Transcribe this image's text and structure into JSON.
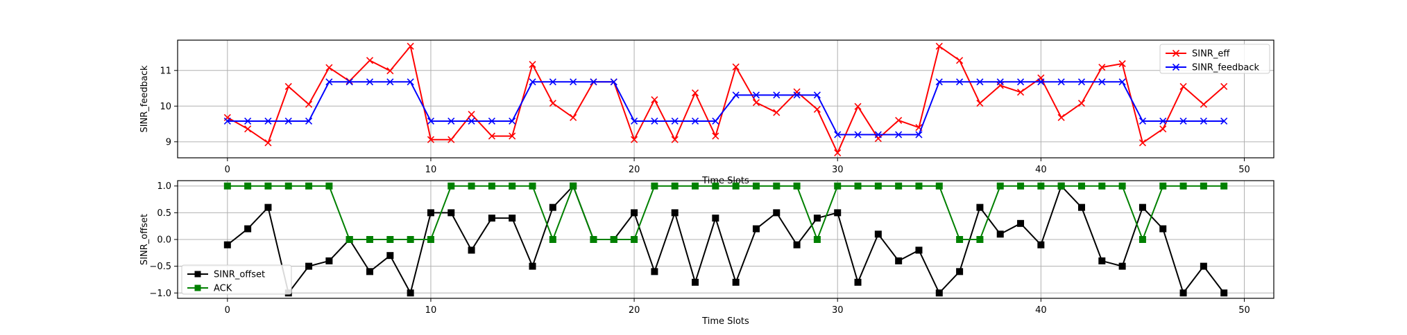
{
  "chart_data": [
    {
      "type": "line",
      "title": "",
      "xlabel": "Time Slots",
      "ylabel": "SINR_feedback",
      "xlim": [
        -2.45,
        51.45
      ],
      "ylim": [
        8.55,
        11.85
      ],
      "xticks": [
        0,
        10,
        20,
        30,
        40,
        50
      ],
      "yticks": [
        9,
        10,
        11
      ],
      "grid": true,
      "legend_position": "upper right",
      "x": [
        0,
        1,
        2,
        3,
        4,
        5,
        6,
        7,
        8,
        9,
        10,
        11,
        12,
        13,
        14,
        15,
        16,
        17,
        18,
        19,
        20,
        21,
        22,
        23,
        24,
        25,
        26,
        27,
        28,
        29,
        30,
        31,
        32,
        33,
        34,
        35,
        36,
        37,
        38,
        39,
        40,
        41,
        42,
        43,
        44,
        45,
        46,
        47,
        48,
        49
      ],
      "series": [
        {
          "name": "SINR_eff",
          "color": "#ff0000",
          "marker": "x",
          "values": [
            9.68,
            9.36,
            8.97,
            10.55,
            10.05,
            11.08,
            10.7,
            11.28,
            10.99,
            11.68,
            9.06,
            9.06,
            9.77,
            9.16,
            9.16,
            11.17,
            10.08,
            9.68,
            10.68,
            10.68,
            9.06,
            10.18,
            9.06,
            10.37,
            9.16,
            11.1,
            10.1,
            9.82,
            10.4,
            9.91,
            8.69,
            9.99,
            9.09,
            9.6,
            9.4,
            11.68,
            11.28,
            10.08,
            10.58,
            10.39,
            10.79,
            9.68,
            10.08,
            11.09,
            11.19,
            8.97,
            9.36,
            10.55,
            10.05,
            10.55
          ]
        },
        {
          "name": "SINR_feedback",
          "color": "#0000ff",
          "marker": "x",
          "values": [
            9.58,
            9.58,
            9.58,
            9.58,
            9.58,
            10.68,
            10.68,
            10.68,
            10.68,
            10.68,
            9.58,
            9.58,
            9.58,
            9.58,
            9.58,
            10.68,
            10.68,
            10.68,
            10.68,
            10.68,
            9.58,
            9.58,
            9.58,
            9.58,
            9.58,
            10.31,
            10.31,
            10.31,
            10.31,
            10.31,
            9.2,
            9.2,
            9.2,
            9.2,
            9.2,
            10.68,
            10.68,
            10.68,
            10.68,
            10.68,
            10.68,
            10.68,
            10.68,
            10.68,
            10.68,
            9.58,
            9.58,
            9.58,
            9.58,
            9.58
          ]
        }
      ]
    },
    {
      "type": "line",
      "title": "",
      "xlabel": "Time Slots",
      "ylabel": "SINR_offset",
      "xlim": [
        -2.45,
        51.45
      ],
      "ylim": [
        -1.1,
        1.1
      ],
      "xticks": [
        0,
        10,
        20,
        30,
        40,
        50
      ],
      "yticks": [
        -1.0,
        -0.5,
        0.0,
        0.5,
        1.0
      ],
      "ytick_labels": [
        "−1.0",
        "−0.5",
        "0.0",
        "0.5",
        "1.0"
      ],
      "grid": true,
      "legend_position": "lower left",
      "x": [
        0,
        1,
        2,
        3,
        4,
        5,
        6,
        7,
        8,
        9,
        10,
        11,
        12,
        13,
        14,
        15,
        16,
        17,
        18,
        19,
        20,
        21,
        22,
        23,
        24,
        25,
        26,
        27,
        28,
        29,
        30,
        31,
        32,
        33,
        34,
        35,
        36,
        37,
        38,
        39,
        40,
        41,
        42,
        43,
        44,
        45,
        46,
        47,
        48,
        49
      ],
      "series": [
        {
          "name": "SINR_offset",
          "color": "#000000",
          "marker": "s",
          "values": [
            -0.1,
            0.2,
            0.6,
            -1.0,
            -0.5,
            -0.4,
            0.0,
            -0.6,
            -0.3,
            -1.0,
            0.5,
            0.5,
            -0.2,
            0.4,
            0.4,
            -0.5,
            0.6,
            1.0,
            0.0,
            0.0,
            0.5,
            -0.6,
            0.5,
            -0.8,
            0.4,
            -0.8,
            0.2,
            0.5,
            -0.1,
            0.4,
            0.5,
            -0.8,
            0.1,
            -0.4,
            -0.2,
            -1.0,
            -0.6,
            0.6,
            0.1,
            0.3,
            -0.1,
            1.0,
            0.6,
            -0.4,
            -0.5,
            0.6,
            0.2,
            -1.0,
            -0.5,
            -1.0
          ]
        },
        {
          "name": "ACK",
          "color": "#008000",
          "marker": "s",
          "values": [
            1,
            1,
            1,
            1,
            1,
            1,
            0,
            0,
            0,
            0,
            0,
            1,
            1,
            1,
            1,
            1,
            0,
            1,
            0,
            0,
            0,
            1,
            1,
            1,
            1,
            1,
            1,
            1,
            1,
            0,
            1,
            1,
            1,
            1,
            1,
            1,
            0,
            0,
            1,
            1,
            1,
            1,
            1,
            1,
            1,
            0,
            1,
            1,
            1,
            1
          ]
        }
      ]
    }
  ]
}
